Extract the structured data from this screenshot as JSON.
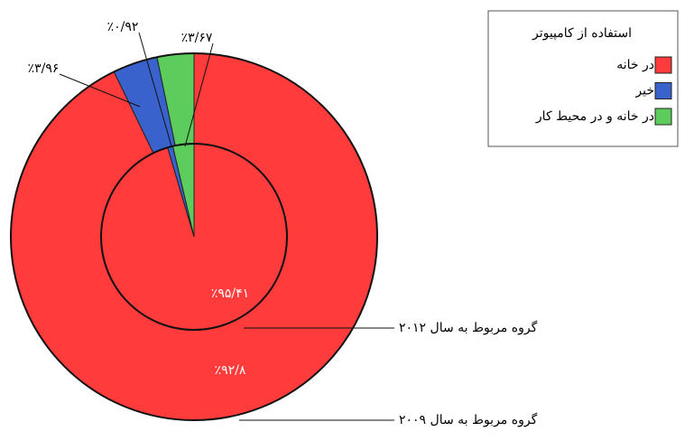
{
  "chart_data": {
    "type": "pie",
    "legend_title": "استفاده از کامپیوتر",
    "categories": [
      "در خانه",
      "خیر",
      "در خانه و در محیط کار"
    ],
    "colors": [
      "#ff3b3b",
      "#3a62cc",
      "#5ccc5c"
    ],
    "rings": [
      {
        "name": "گروه مربوط به سال ۲۰۰۹",
        "values": [
          92.8,
          3.96,
          3.24
        ],
        "value_labels": [
          "٪۹۲/۸",
          "٪۳/۹۶",
          null
        ]
      },
      {
        "name": "گروه مربوط به سال ۲۰۱۲",
        "values": [
          95.41,
          0.92,
          3.67
        ],
        "value_labels": [
          "٪۹۵/۴۱",
          "٪۰/۹۲",
          "٪۳/۶۷"
        ]
      }
    ]
  }
}
